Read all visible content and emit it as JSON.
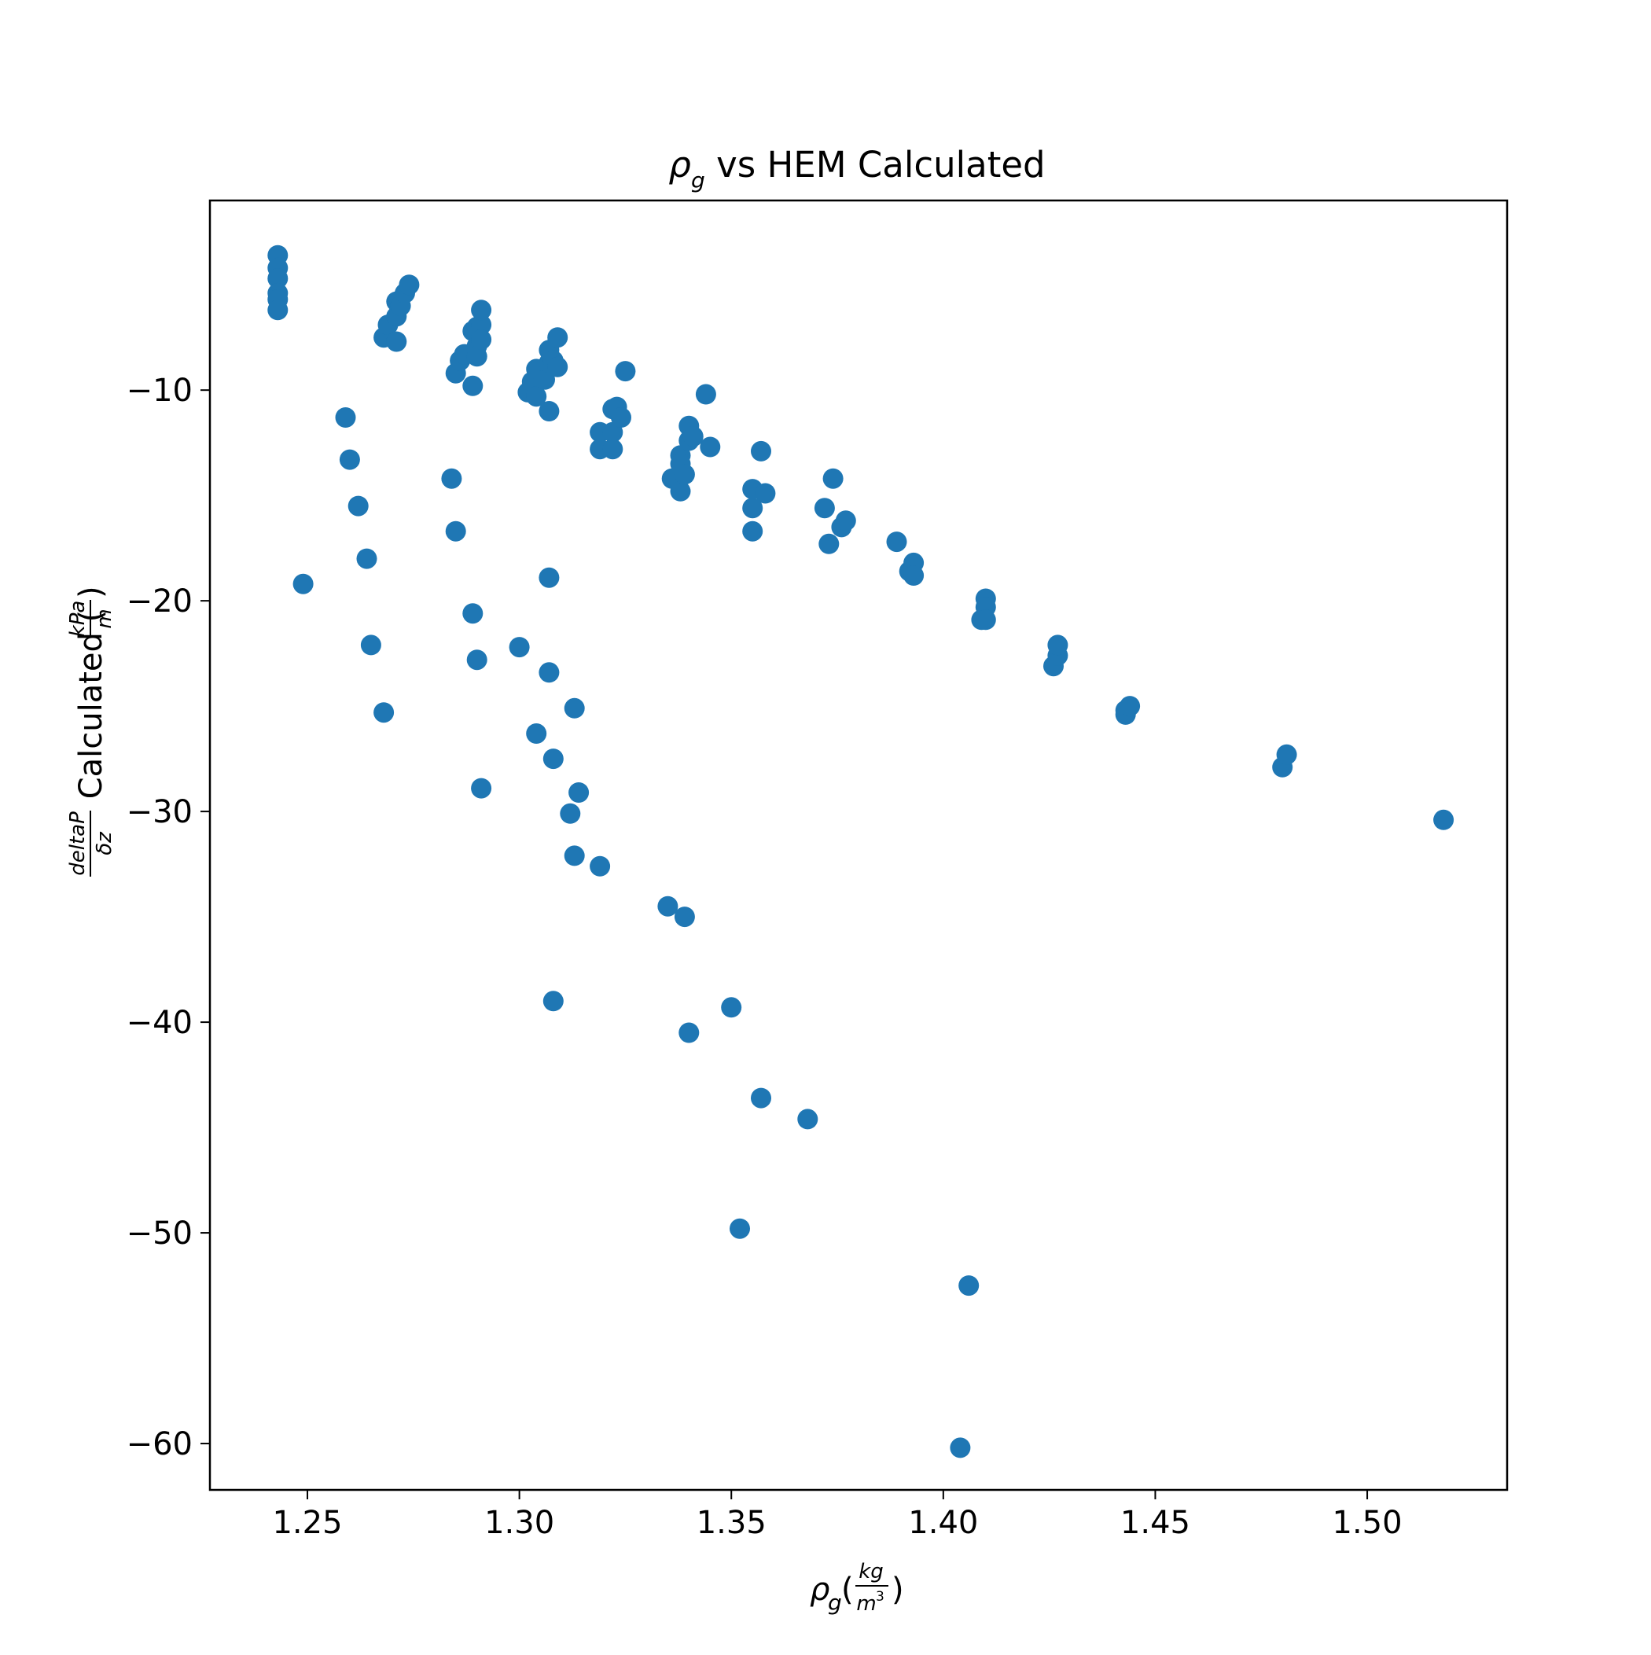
{
  "chart_data": {
    "type": "scatter",
    "title": {
      "symbol": "ρ",
      "subscript": "g",
      "text": " vs HEM Calculated"
    },
    "xlabel": {
      "symbol": "ρ",
      "subscript": "g",
      "open": "(",
      "numerator": "kg",
      "denominator": "m",
      "denominator_exponent": "3",
      "close": ")"
    },
    "ylabel": {
      "numerator": "deltaP",
      "denominator": "δz",
      "text": " Calculated (",
      "unit_numerator": "kPa",
      "unit_denominator": "m",
      "close": ")"
    },
    "xlim": [
      1.227,
      1.533
    ],
    "ylim": [
      -62.2,
      -1.0
    ],
    "xticks": [
      1.25,
      1.3,
      1.35,
      1.4,
      1.45,
      1.5
    ],
    "xtick_labels": [
      "1.25",
      "1.30",
      "1.35",
      "1.40",
      "1.45",
      "1.50"
    ],
    "yticks": [
      -10,
      -20,
      -30,
      -40,
      -50,
      -60
    ],
    "ytick_labels": [
      "−10",
      "−20",
      "−30",
      "−40",
      "−50",
      "−60"
    ],
    "grid": false,
    "legend": "none",
    "marker_color": "#1f77b4",
    "series": [
      {
        "points": [
          [
            1.243,
            -3.6
          ],
          [
            1.243,
            -4.2
          ],
          [
            1.243,
            -4.7
          ],
          [
            1.243,
            -5.4
          ],
          [
            1.243,
            -5.7
          ],
          [
            1.243,
            -6.2
          ],
          [
            1.249,
            -19.2
          ],
          [
            1.259,
            -11.3
          ],
          [
            1.26,
            -13.3
          ],
          [
            1.262,
            -15.5
          ],
          [
            1.264,
            -18.0
          ],
          [
            1.265,
            -22.1
          ],
          [
            1.268,
            -25.3
          ],
          [
            1.268,
            -7.5
          ],
          [
            1.269,
            -6.9
          ],
          [
            1.271,
            -7.7
          ],
          [
            1.271,
            -6.5
          ],
          [
            1.271,
            -5.8
          ],
          [
            1.272,
            -6.0
          ],
          [
            1.273,
            -5.4
          ],
          [
            1.274,
            -5.0
          ],
          [
            1.284,
            -14.2
          ],
          [
            1.285,
            -16.7
          ],
          [
            1.285,
            -9.2
          ],
          [
            1.286,
            -8.6
          ],
          [
            1.287,
            -8.3
          ],
          [
            1.289,
            -7.2
          ],
          [
            1.289,
            -9.8
          ],
          [
            1.289,
            -20.6
          ],
          [
            1.29,
            -7.9
          ],
          [
            1.29,
            -8.4
          ],
          [
            1.29,
            -7.0
          ],
          [
            1.29,
            -22.8
          ],
          [
            1.291,
            -6.9
          ],
          [
            1.291,
            -6.2
          ],
          [
            1.291,
            -7.6
          ],
          [
            1.291,
            -28.9
          ],
          [
            1.3,
            -22.2
          ],
          [
            1.302,
            -10.1
          ],
          [
            1.303,
            -9.6
          ],
          [
            1.304,
            -9.0
          ],
          [
            1.304,
            -10.3
          ],
          [
            1.304,
            -26.3
          ],
          [
            1.306,
            -9.5
          ],
          [
            1.307,
            -8.7
          ],
          [
            1.307,
            -8.1
          ],
          [
            1.307,
            -11.0
          ],
          [
            1.307,
            -18.9
          ],
          [
            1.307,
            -23.4
          ],
          [
            1.308,
            -8.6
          ],
          [
            1.308,
            -27.5
          ],
          [
            1.308,
            -39.0
          ],
          [
            1.309,
            -7.5
          ],
          [
            1.309,
            -8.9
          ],
          [
            1.312,
            -30.1
          ],
          [
            1.313,
            -25.1
          ],
          [
            1.313,
            -32.1
          ],
          [
            1.314,
            -29.1
          ],
          [
            1.319,
            -12.0
          ],
          [
            1.319,
            -12.8
          ],
          [
            1.319,
            -32.6
          ],
          [
            1.322,
            -10.9
          ],
          [
            1.322,
            -12.0
          ],
          [
            1.322,
            -12.8
          ],
          [
            1.323,
            -10.8
          ],
          [
            1.324,
            -11.3
          ],
          [
            1.325,
            -9.1
          ],
          [
            1.335,
            -34.5
          ],
          [
            1.336,
            -14.2
          ],
          [
            1.338,
            -13.1
          ],
          [
            1.338,
            -13.5
          ],
          [
            1.338,
            -14.8
          ],
          [
            1.339,
            -14.0
          ],
          [
            1.339,
            -35.0
          ],
          [
            1.34,
            -11.7
          ],
          [
            1.34,
            -12.4
          ],
          [
            1.34,
            -40.5
          ],
          [
            1.341,
            -12.2
          ],
          [
            1.344,
            -10.2
          ],
          [
            1.345,
            -12.7
          ],
          [
            1.35,
            -39.3
          ],
          [
            1.352,
            -49.8
          ],
          [
            1.355,
            -14.7
          ],
          [
            1.355,
            -15.6
          ],
          [
            1.355,
            -16.7
          ],
          [
            1.357,
            -12.9
          ],
          [
            1.357,
            -43.6
          ],
          [
            1.358,
            -14.9
          ],
          [
            1.368,
            -44.6
          ],
          [
            1.372,
            -15.6
          ],
          [
            1.373,
            -17.3
          ],
          [
            1.374,
            -14.2
          ],
          [
            1.376,
            -16.5
          ],
          [
            1.377,
            -16.2
          ],
          [
            1.389,
            -17.2
          ],
          [
            1.392,
            -18.6
          ],
          [
            1.393,
            -18.2
          ],
          [
            1.393,
            -18.8
          ],
          [
            1.404,
            -60.2
          ],
          [
            1.406,
            -52.5
          ],
          [
            1.409,
            -20.9
          ],
          [
            1.41,
            -19.9
          ],
          [
            1.41,
            -20.3
          ],
          [
            1.41,
            -20.9
          ],
          [
            1.426,
            -23.1
          ],
          [
            1.427,
            -22.6
          ],
          [
            1.427,
            -22.1
          ],
          [
            1.443,
            -25.2
          ],
          [
            1.443,
            -25.4
          ],
          [
            1.444,
            -25.0
          ],
          [
            1.48,
            -27.9
          ],
          [
            1.481,
            -27.3
          ],
          [
            1.518,
            -30.4
          ]
        ]
      }
    ]
  }
}
